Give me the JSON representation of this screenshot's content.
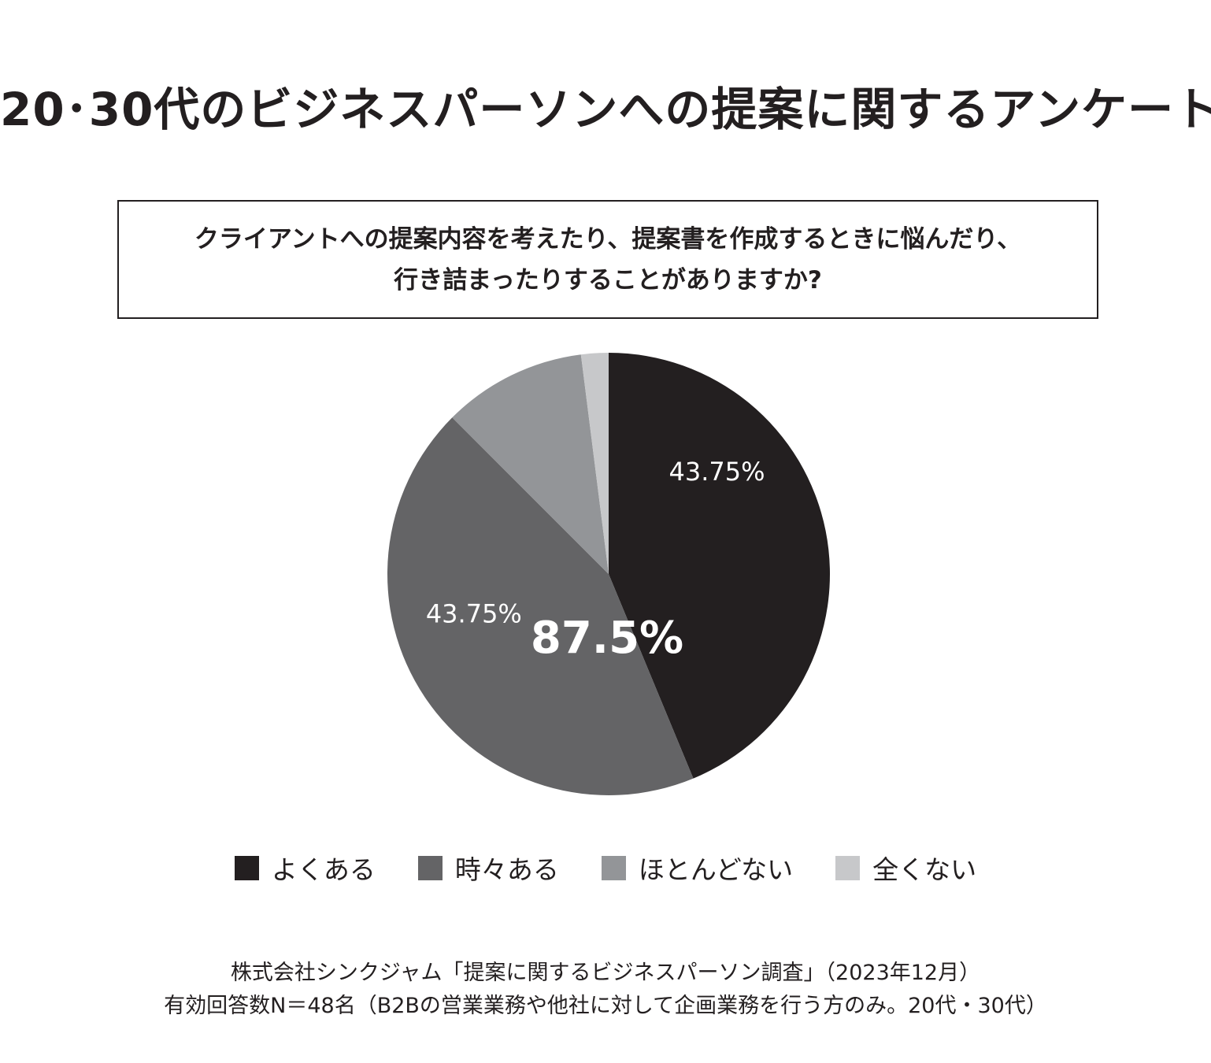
{
  "title": "20･30代のビジネスパーソンへの提案に関するアンケート",
  "question": {
    "line1": "クライアントへの提案内容を考えたり、提案書を作成するときに悩んだり、",
    "line2": "行き詰まったりすることがありますか?"
  },
  "colors": {
    "yoku_aru": "#231f20",
    "tokidoki_aru": "#646466",
    "hotondo_nai": "#939598",
    "mattaku_nai": "#c7c8ca"
  },
  "chart_data": {
    "type": "pie",
    "title": "クライアントへの提案内容を考えたり、提案書を作成するときに悩んだり、行き詰まったりすることがありますか?",
    "slices": [
      {
        "label": "よくある",
        "value": 43.75,
        "color": "#231f20",
        "data_label": "43.75%"
      },
      {
        "label": "時々ある",
        "value": 43.75,
        "color": "#646466",
        "data_label": "43.75%"
      },
      {
        "label": "ほとんどない",
        "value": 10.5,
        "color": "#939598",
        "data_label": ""
      },
      {
        "label": "全くない",
        "value": 2.0,
        "color": "#c7c8ca",
        "data_label": ""
      }
    ],
    "annotations": [
      "87.5%"
    ],
    "legend_position": "bottom",
    "start_angle_deg": 0,
    "direction": "clockwise"
  },
  "legend": [
    {
      "label": "よくある",
      "color": "#231f20"
    },
    {
      "label": "時々ある",
      "color": "#646466"
    },
    {
      "label": "ほとんどない",
      "color": "#939598"
    },
    {
      "label": "全くない",
      "color": "#c7c8ca"
    }
  ],
  "source": {
    "line1": "株式会社シンクジャム「提案に関するビジネスパーソン調査」（2023年12月）",
    "line2": "有効回答数N＝48名（B2Bの営業業務や他社に対して企画業務を行う方のみ。20代・30代）"
  }
}
